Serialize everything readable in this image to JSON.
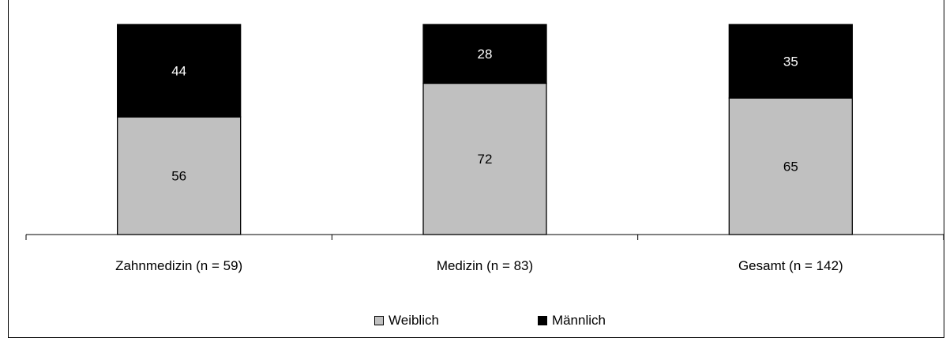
{
  "title": "",
  "colors": {
    "weiblich": "#c0c0c0",
    "maennlich": "#000000"
  },
  "legend": {
    "items": [
      "Weiblich",
      "Männlich"
    ],
    "position": "bottom"
  },
  "chart_data": {
    "type": "bar",
    "stacked": true,
    "categories": [
      "Zahnmedizin (n = 59)",
      "Medizin (n = 83)",
      "Gesamt (n = 142)"
    ],
    "series": [
      {
        "name": "Weiblich",
        "values": [
          56,
          72,
          65
        ]
      },
      {
        "name": "Männlich",
        "values": [
          44,
          28,
          35
        ]
      }
    ],
    "ylim": [
      0,
      100
    ],
    "grid": false,
    "legend_position": "bottom"
  }
}
